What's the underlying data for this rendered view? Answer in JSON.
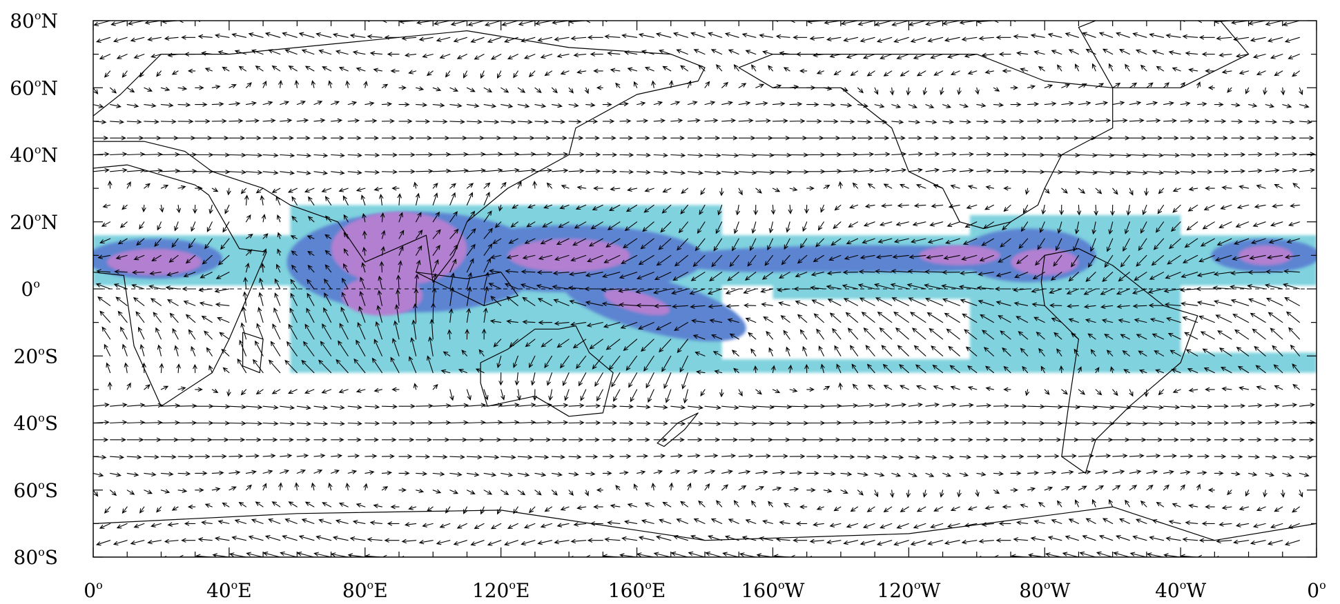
{
  "map": {
    "projection": "equirectangular",
    "lon_range": [
      0,
      360
    ],
    "lat_range": [
      -80,
      80
    ],
    "grid": false,
    "colors": {
      "level_1": "#7fd2de",
      "level_2": "#5c84d1",
      "level_3": "#b37fd0",
      "level_4": "#9a65b8",
      "vectors": "#000000",
      "coastlines": "#000000"
    },
    "lat_ticks": [
      {
        "value": 80,
        "num": "80",
        "hem": "N"
      },
      {
        "value": 60,
        "num": "60",
        "hem": "N"
      },
      {
        "value": 40,
        "num": "40",
        "hem": "N"
      },
      {
        "value": 20,
        "num": "20",
        "hem": "N"
      },
      {
        "value": 0,
        "num": "0",
        "hem": ""
      },
      {
        "value": -20,
        "num": "20",
        "hem": "S"
      },
      {
        "value": -40,
        "num": "40",
        "hem": "S"
      },
      {
        "value": -60,
        "num": "60",
        "hem": "S"
      },
      {
        "value": -80,
        "num": "80",
        "hem": "S"
      }
    ],
    "lon_ticks": [
      {
        "value": 0,
        "num": "0",
        "hem": ""
      },
      {
        "value": 40,
        "num": "40",
        "hem": "E"
      },
      {
        "value": 80,
        "num": "80",
        "hem": "E"
      },
      {
        "value": 120,
        "num": "120",
        "hem": "E"
      },
      {
        "value": 160,
        "num": "160",
        "hem": "E"
      },
      {
        "value": 200,
        "num": "160",
        "hem": "W"
      },
      {
        "value": 240,
        "num": "120",
        "hem": "W"
      },
      {
        "value": 280,
        "num": "80",
        "hem": "W"
      },
      {
        "value": 320,
        "num": "40",
        "hem": "W"
      },
      {
        "value": 360,
        "num": "0",
        "hem": ""
      }
    ],
    "degree_symbol": "o"
  }
}
